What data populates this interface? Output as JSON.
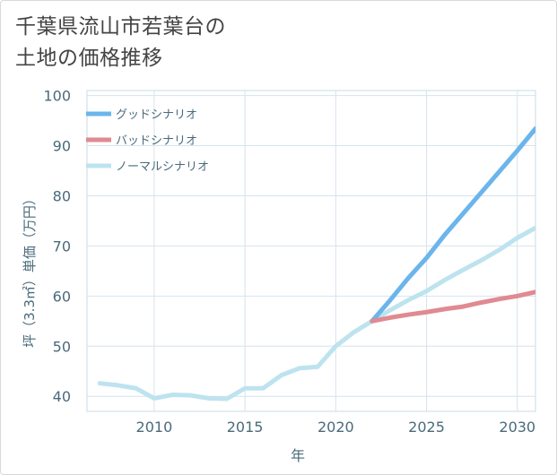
{
  "page": {
    "title_line1": "千葉県流山市若葉台の",
    "title_line2": "土地の価格推移"
  },
  "chart_data": {
    "type": "line",
    "title": "千葉県流山市若葉台の土地の価格推移",
    "xlabel": "年",
    "ylabel": "坪（3.3㎡）単価（万円）",
    "xlim": [
      2006.3,
      2031
    ],
    "ylim": [
      37,
      101
    ],
    "x_ticks": [
      2010,
      2015,
      2020,
      2025,
      2030
    ],
    "y_ticks": [
      40,
      50,
      60,
      70,
      80,
      90,
      100
    ],
    "grid": true,
    "legend_position": "top-left",
    "series": [
      {
        "name": "グッドシナリオ",
        "color": "#6bb5ec",
        "x": [
          2022,
          2023,
          2024,
          2025,
          2026,
          2027,
          2028,
          2029,
          2030,
          2031
        ],
        "values": [
          55.0,
          59.2,
          63.6,
          67.6,
          72.2,
          76.4,
          80.6,
          84.8,
          89.0,
          93.4
        ]
      },
      {
        "name": "バッドシナリオ",
        "color": "#e08a92",
        "x": [
          2022,
          2023,
          2024,
          2025,
          2026,
          2027,
          2028,
          2029,
          2030,
          2031
        ],
        "values": [
          55.0,
          55.7,
          56.3,
          56.8,
          57.4,
          57.9,
          58.7,
          59.4,
          60.0,
          60.8
        ]
      },
      {
        "name": "ノーマルシナリオ",
        "color": "#bde3ef",
        "x": [
          2007,
          2008,
          2009,
          2010,
          2011,
          2012,
          2013,
          2014,
          2015,
          2016,
          2017,
          2018,
          2019,
          2020,
          2021,
          2022,
          2023,
          2024,
          2025,
          2026,
          2027,
          2028,
          2029,
          2030,
          2031
        ],
        "values": [
          42.6,
          42.2,
          41.6,
          39.6,
          40.3,
          40.2,
          39.6,
          39.5,
          41.6,
          41.6,
          44.2,
          45.6,
          45.9,
          50.0,
          52.8,
          55.0,
          57.2,
          59.2,
          61.0,
          63.2,
          65.2,
          67.1,
          69.2,
          71.6,
          73.6
        ]
      }
    ]
  }
}
